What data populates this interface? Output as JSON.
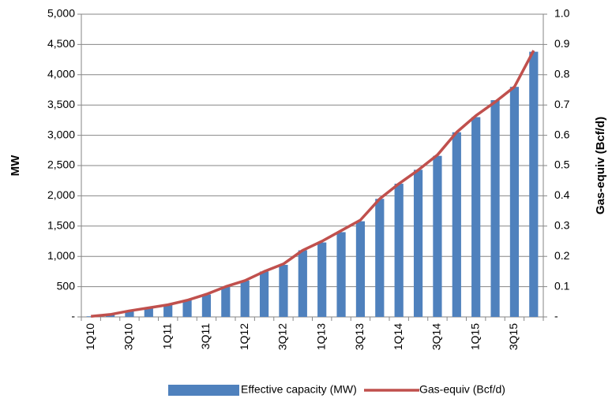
{
  "chart_data": {
    "type": "bar",
    "categories": [
      "1Q10",
      null,
      "3Q10",
      null,
      "1Q11",
      null,
      "3Q11",
      null,
      "1Q12",
      null,
      "3Q12",
      null,
      "1Q13",
      null,
      "3Q13",
      null,
      "1Q14",
      null,
      "3Q14",
      null,
      "1Q15",
      null,
      "3Q15",
      null
    ],
    "series": [
      {
        "name": "Effective capacity (MW)",
        "type": "bar",
        "color": "#4f81bd",
        "values": [
          10,
          40,
          100,
          150,
          200,
          280,
          370,
          500,
          600,
          750,
          860,
          1100,
          1230,
          1400,
          1580,
          1950,
          2200,
          2430,
          2660,
          3050,
          3300,
          3580,
          3800,
          4380
        ]
      },
      {
        "name": "Gas-equiv (Bcf/d)",
        "type": "line",
        "color": "#c0504d",
        "axis": "y2",
        "values": [
          0.002,
          0.008,
          0.02,
          0.03,
          0.04,
          0.055,
          0.075,
          0.1,
          0.12,
          0.15,
          0.175,
          0.22,
          0.25,
          0.285,
          0.32,
          0.39,
          0.44,
          0.485,
          0.535,
          0.61,
          0.665,
          0.71,
          0.76,
          0.88
        ]
      }
    ],
    "ylabel": "MW",
    "y2label": "Gas-equiv (Bcf/d)",
    "ylim": [
      0,
      5000
    ],
    "yticks": [
      {
        "value": 0,
        "label": "-"
      },
      500,
      {
        "value": 1000,
        "label": "1,000"
      },
      {
        "value": 1500,
        "label": "1,500"
      },
      {
        "value": 2000,
        "label": "2,000"
      },
      {
        "value": 2500,
        "label": "2,500"
      },
      {
        "value": 3000,
        "label": "3,000"
      },
      {
        "value": 3500,
        "label": "3,500"
      },
      {
        "value": 4000,
        "label": "4,000"
      },
      {
        "value": 4500,
        "label": "4,500"
      },
      {
        "value": 5000,
        "label": "5,000"
      }
    ],
    "y2lim": [
      0,
      1
    ],
    "y2ticks": [
      {
        "value": 0,
        "label": "-"
      },
      0.1,
      0.2,
      0.3,
      0.4,
      0.5,
      0.6,
      0.7,
      0.8,
      0.9,
      {
        "value": 1,
        "label": "1.0"
      }
    ],
    "grid": true,
    "legend": "bottom"
  }
}
